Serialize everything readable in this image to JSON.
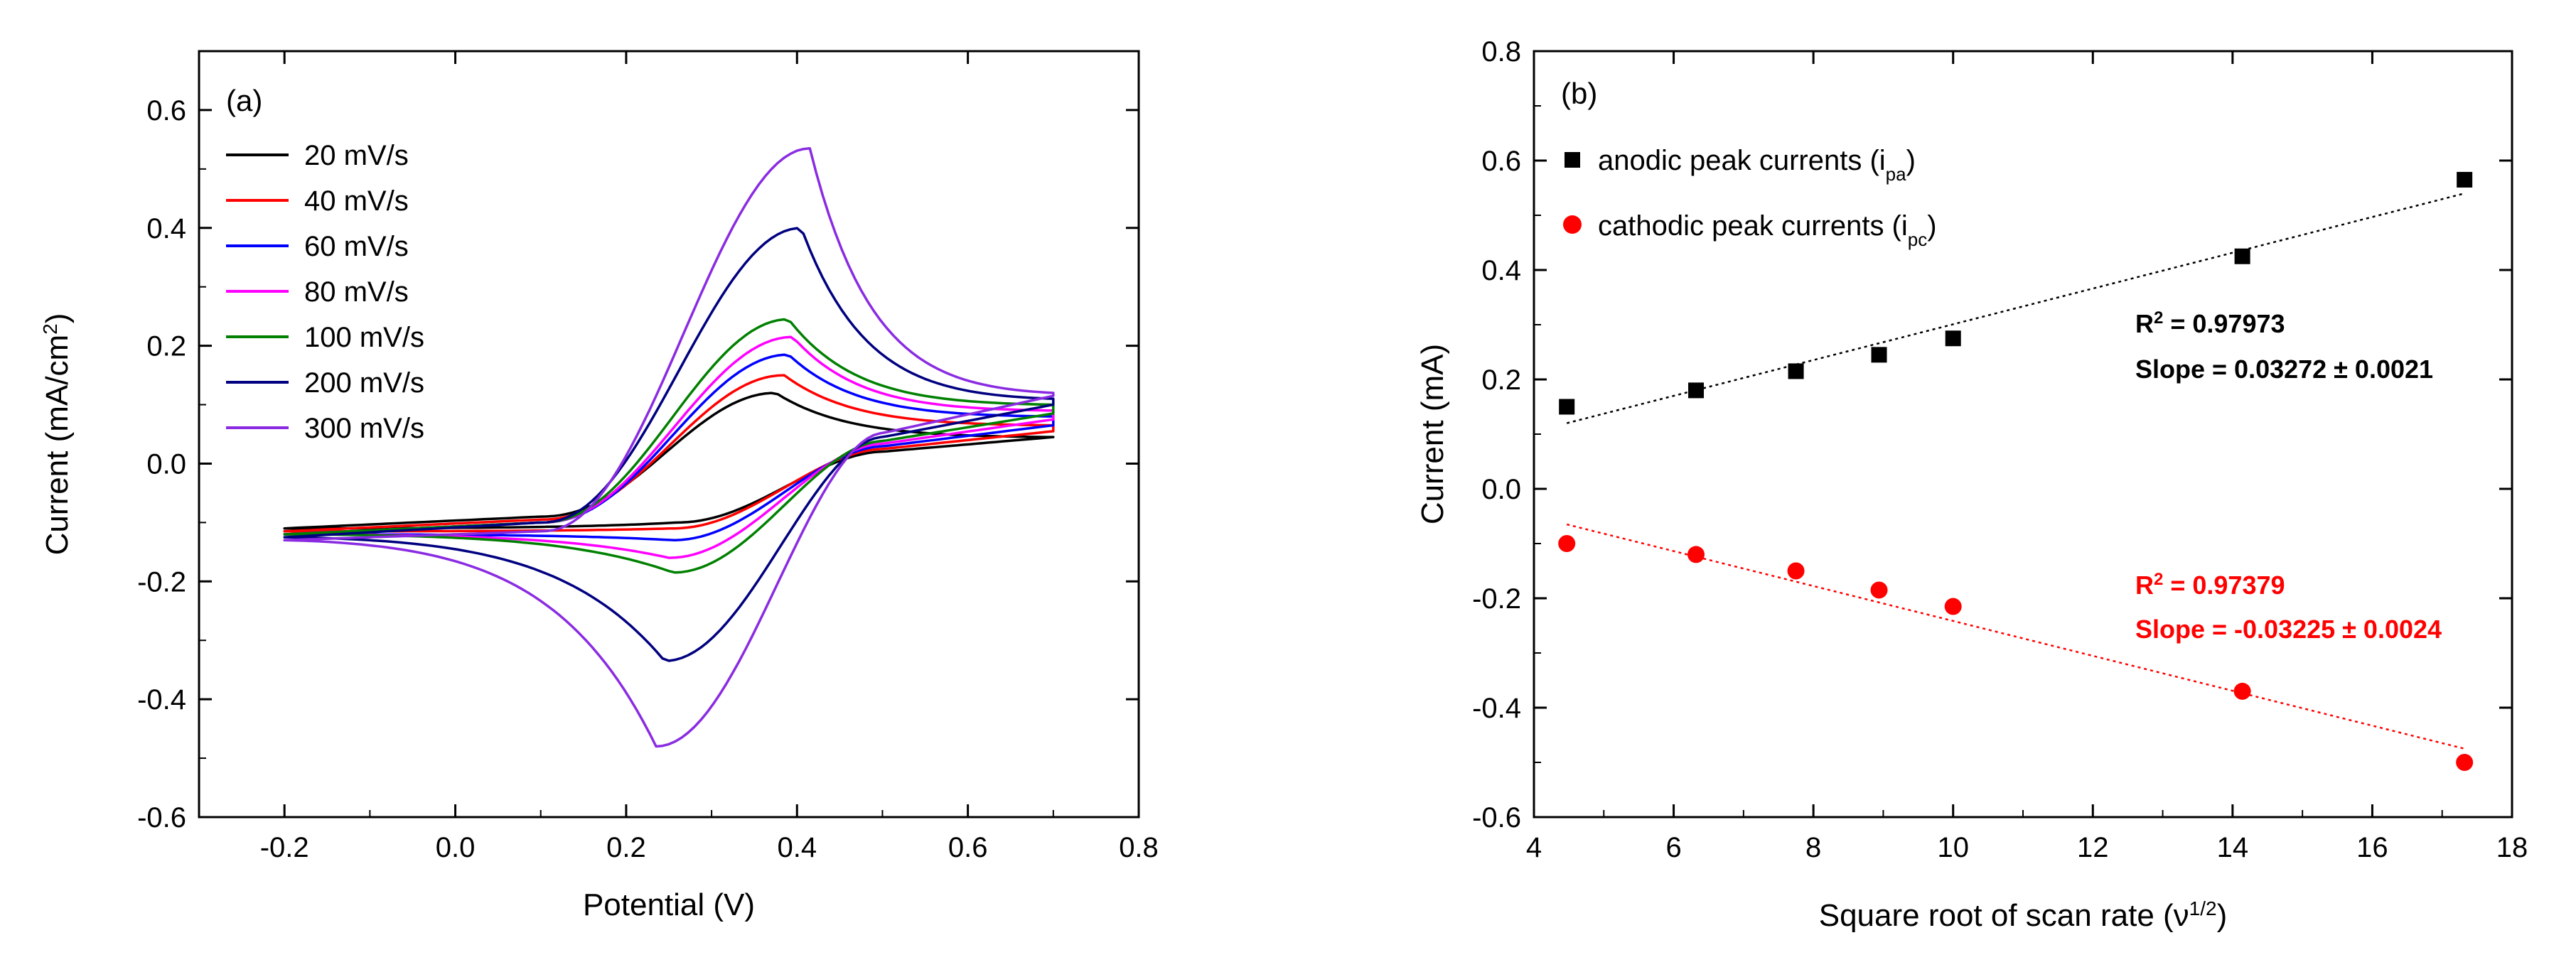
{
  "chart_data": [
    {
      "type": "line",
      "panel_label": "(a)",
      "xlabel": "Potential (V)",
      "ylabel_main": "Current (mA/cm",
      "ylabel_sup": "2",
      "ylabel_end": ")",
      "xlim": [
        -0.3,
        0.8
      ],
      "ylim": [
        -0.6,
        0.7
      ],
      "xticks": [
        "-0.2",
        "0.0",
        "0.2",
        "0.4",
        "0.6",
        "0.8"
      ],
      "xtick_values": [
        -0.2,
        0.0,
        0.2,
        0.4,
        0.6,
        0.8
      ],
      "yticks": [
        "-0.6",
        "-0.4",
        "-0.2",
        "0.0",
        "0.2",
        "0.4",
        "0.6"
      ],
      "ytick_values": [
        -0.6,
        -0.4,
        -0.2,
        0.0,
        0.2,
        0.4,
        0.6
      ],
      "legend_position": "top-left",
      "series": [
        {
          "name": "20 mV/s",
          "color": "#000000",
          "start_left": -0.11,
          "left_before_rise": -0.09,
          "anodic_peak": [
            0.375,
            0.12
          ],
          "end_right_upper": 0.045,
          "end_right_lower": 0.045,
          "cathodic_peak": [
            0.26,
            -0.1
          ]
        },
        {
          "name": "40 mV/s",
          "color": "#ff0000",
          "start_left": -0.115,
          "left_before_rise": -0.095,
          "anodic_peak": [
            0.385,
            0.15
          ],
          "end_right_upper": 0.065,
          "end_right_lower": 0.055,
          "cathodic_peak": [
            0.255,
            -0.11
          ]
        },
        {
          "name": "60 mV/s",
          "color": "#0000ff",
          "start_left": -0.12,
          "left_before_rise": -0.1,
          "anodic_peak": [
            0.39,
            0.185
          ],
          "end_right_upper": 0.08,
          "end_right_lower": 0.065,
          "cathodic_peak": [
            0.255,
            -0.13
          ]
        },
        {
          "name": "80 mV/s",
          "color": "#ff00ff",
          "start_left": -0.12,
          "left_before_rise": -0.1,
          "anodic_peak": [
            0.395,
            0.215
          ],
          "end_right_upper": 0.09,
          "end_right_lower": 0.075,
          "cathodic_peak": [
            0.25,
            -0.16
          ]
        },
        {
          "name": "100 mV/s",
          "color": "#008000",
          "start_left": -0.12,
          "left_before_rise": -0.1,
          "anodic_peak": [
            0.39,
            0.245
          ],
          "end_right_upper": 0.1,
          "end_right_lower": 0.085,
          "cathodic_peak": [
            0.255,
            -0.185
          ]
        },
        {
          "name": "200 mV/s",
          "color": "#000080",
          "start_left": -0.125,
          "left_before_rise": -0.1,
          "anodic_peak": [
            0.405,
            0.4
          ],
          "end_right_upper": 0.11,
          "end_right_lower": 0.1,
          "cathodic_peak": [
            0.245,
            -0.335
          ]
        },
        {
          "name": "300 mV/s",
          "color": "#8a2be2",
          "start_left": -0.13,
          "left_before_rise": -0.115,
          "anodic_peak": [
            0.415,
            0.535
          ],
          "end_right_upper": 0.12,
          "end_right_lower": 0.115,
          "cathodic_peak": [
            0.235,
            -0.48
          ]
        }
      ]
    },
    {
      "type": "scatter",
      "panel_label": "(b)",
      "xlabel_main": "Square root of scan rate (ν",
      "xlabel_sup": "1/2",
      "xlabel_end": ")",
      "ylabel": "Current (mA)",
      "xlim": [
        4,
        18
      ],
      "ylim": [
        -0.6,
        0.8
      ],
      "xticks": [
        "4",
        "6",
        "8",
        "10",
        "12",
        "14",
        "16",
        "18"
      ],
      "xtick_values": [
        4,
        6,
        8,
        10,
        12,
        14,
        16,
        18
      ],
      "yticks": [
        "-0.6",
        "-0.4",
        "-0.2",
        "0.0",
        "0.2",
        "0.4",
        "0.6",
        "0.8"
      ],
      "ytick_values": [
        -0.6,
        -0.4,
        -0.2,
        0.0,
        0.2,
        0.4,
        0.6,
        0.8
      ],
      "legend_position": "top-left",
      "x": [
        4.47,
        6.32,
        7.75,
        8.94,
        10.0,
        14.14,
        17.32
      ],
      "series": [
        {
          "name_main": "anodic peak currents (i",
          "name_sub": "pa",
          "name_end": ")",
          "marker": "square",
          "color": "#000000",
          "values": [
            0.15,
            0.18,
            0.215,
            0.245,
            0.275,
            0.425,
            0.565
          ],
          "fit": {
            "x": [
              4.47,
              17.32
            ],
            "y": [
              0.12,
              0.54
            ]
          },
          "r2_label": "R",
          "r2_sup": "2",
          "r2_value": " = 0.97973",
          "slope_label": "Slope = 0.03272 ± 0.0021"
        },
        {
          "name_main": "cathodic peak currents (i",
          "name_sub": "pc",
          "name_end": ")",
          "marker": "circle",
          "color": "#ff0000",
          "values": [
            -0.1,
            -0.12,
            -0.15,
            -0.185,
            -0.215,
            -0.37,
            -0.5
          ],
          "fit": {
            "x": [
              4.47,
              17.32
            ],
            "y": [
              -0.065,
              -0.475
            ]
          },
          "r2_label": "R",
          "r2_sup": "2",
          "r2_value": " = 0.97379",
          "slope_label": "Slope = -0.03225 ± 0.0024"
        }
      ]
    }
  ]
}
